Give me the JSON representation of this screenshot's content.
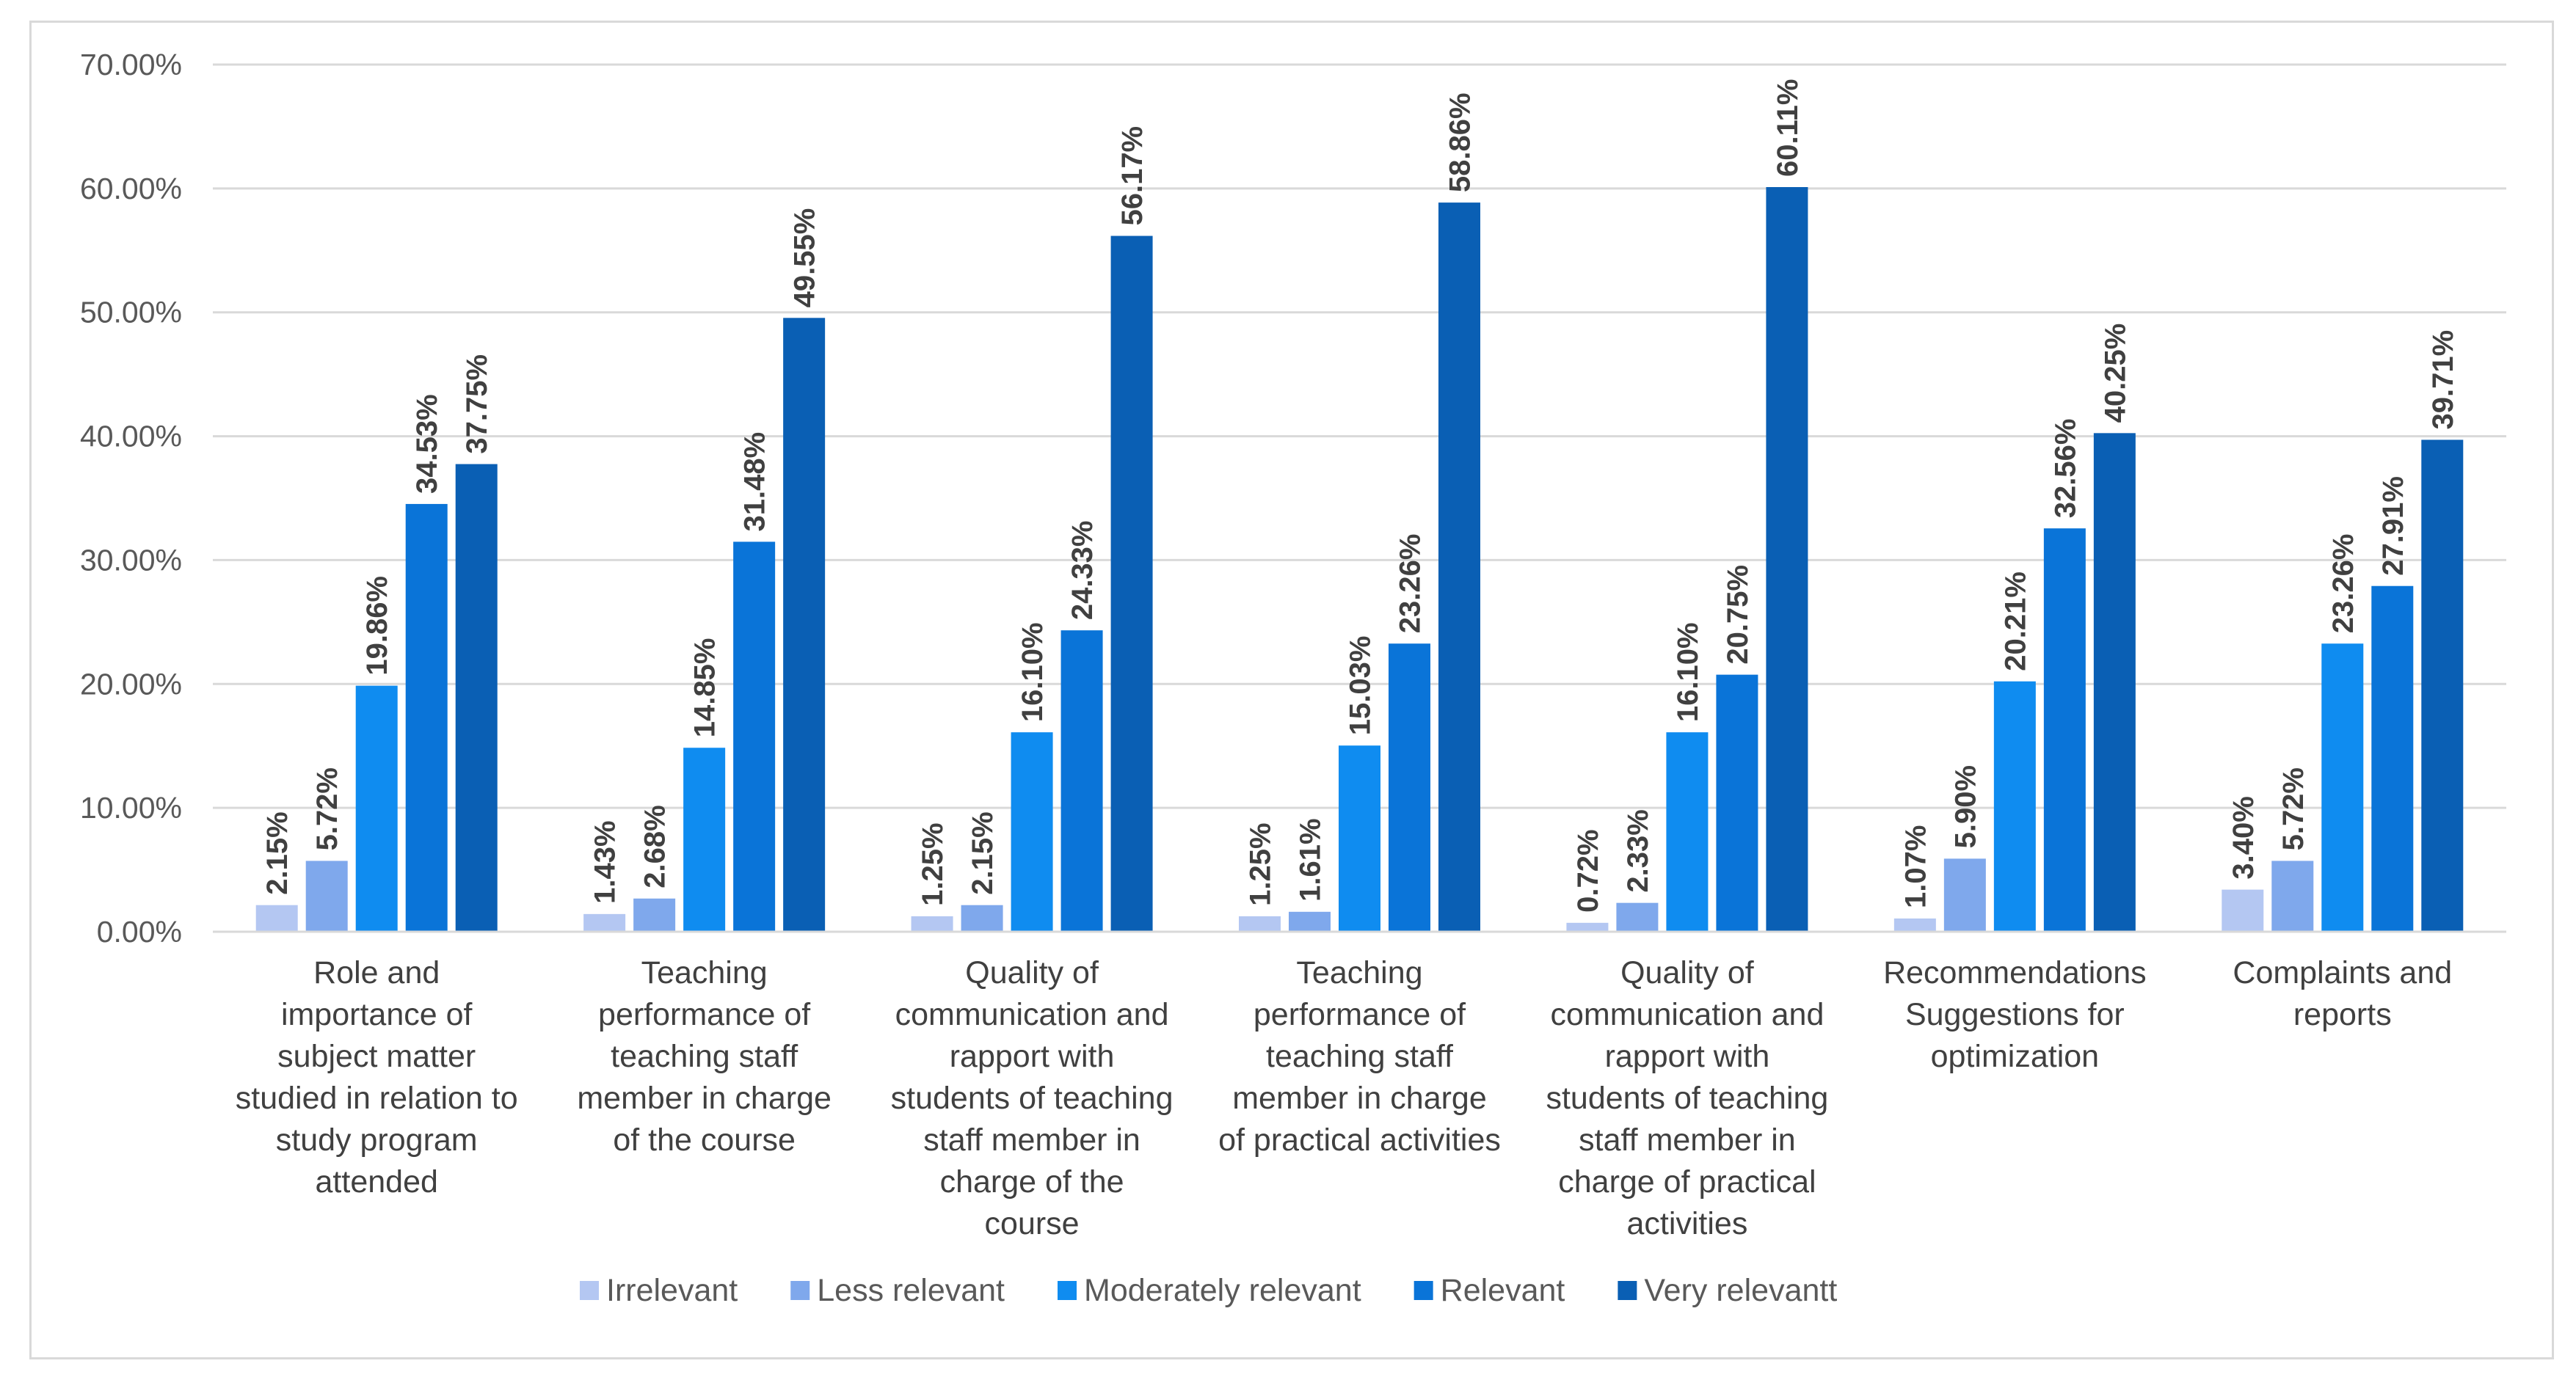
{
  "chart_data": {
    "type": "bar",
    "title": "",
    "xlabel": "",
    "ylabel": "",
    "ylim": [
      0,
      70
    ],
    "y_ticks": [
      "0.00%",
      "10.00%",
      "20.00%",
      "30.00%",
      "40.00%",
      "50.00%",
      "60.00%",
      "70.00%"
    ],
    "grid": true,
    "legend_position": "bottom",
    "categories": [
      [
        "Role and",
        "importance of",
        "subject matter",
        "studied in relation to",
        "study program",
        "attended"
      ],
      [
        "Teaching",
        "performance of",
        "teaching staff",
        "member in charge",
        "of the course"
      ],
      [
        "Quality of",
        "communication and",
        "rapport with",
        "students of teaching",
        "staff member in",
        "charge of the",
        "course"
      ],
      [
        "Teaching",
        "performance of",
        "teaching staff",
        "member in charge",
        "of practical activities"
      ],
      [
        "Quality of",
        "communication and",
        "rapport with",
        "students of teaching",
        "staff member in",
        "charge of practical",
        "activities"
      ],
      [
        "Recommendations",
        "Suggestions for",
        "optimization"
      ],
      [
        "Complaints and",
        "reports"
      ]
    ],
    "series": [
      {
        "name": "Irrelevant",
        "color": "#b4c7f2",
        "values": [
          2.15,
          1.43,
          1.25,
          1.25,
          0.72,
          1.07,
          3.4
        ],
        "labels": [
          "2.15%",
          "1.43%",
          "1.25%",
          "1.25%",
          "0.72%",
          "1.07%",
          "3.40%"
        ]
      },
      {
        "name": "Less relevant",
        "color": "#7fa8ec",
        "values": [
          5.72,
          2.68,
          2.15,
          1.61,
          2.33,
          5.9,
          5.72
        ],
        "labels": [
          "5.72%",
          "2.68%",
          "2.15%",
          "1.61%",
          "2.33%",
          "5.90%",
          "5.72%"
        ]
      },
      {
        "name": "Moderately relevant",
        "color": "#0f8cf0",
        "values": [
          19.86,
          14.85,
          16.1,
          15.03,
          16.1,
          20.21,
          23.26
        ],
        "labels": [
          "19.86%",
          "14.85%",
          "16.10%",
          "15.03%",
          "16.10%",
          "20.21%",
          "23.26%"
        ]
      },
      {
        "name": "Relevant",
        "color": "#0a74d8",
        "values": [
          34.53,
          31.48,
          24.33,
          23.26,
          20.75,
          32.56,
          27.91
        ],
        "labels": [
          "34.53%",
          "31.48%",
          "24.33%",
          "23.26%",
          "20.75%",
          "32.56%",
          "27.91%"
        ]
      },
      {
        "name": "Very relevantt",
        "color": "#0a5fb4",
        "values": [
          37.75,
          49.55,
          56.17,
          58.86,
          60.11,
          40.25,
          39.71
        ],
        "labels": [
          "37.75%",
          "49.55%",
          "56.17%",
          "58.86%",
          "60.11%",
          "40.25%",
          "39.71%"
        ]
      }
    ]
  }
}
